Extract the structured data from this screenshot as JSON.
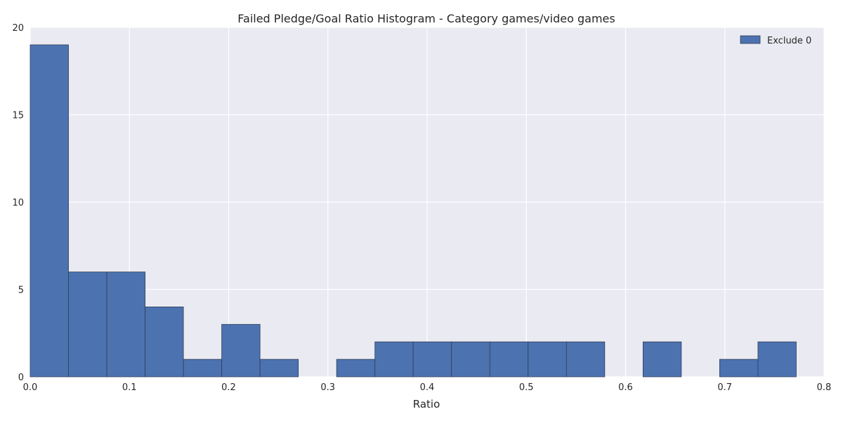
{
  "chart_data": {
    "type": "bar",
    "title": "Failed Pledge/Goal Ratio Histogram - Category games/video games",
    "xlabel": "Ratio",
    "ylabel": "",
    "xlim": [
      0,
      0.8
    ],
    "ylim": [
      0,
      20
    ],
    "xticks": [
      "0.0",
      "0.1",
      "0.2",
      "0.3",
      "0.4",
      "0.5",
      "0.6",
      "0.7",
      "0.8"
    ],
    "yticks": [
      "0",
      "5",
      "10",
      "15",
      "20"
    ],
    "grid": true,
    "legend_position": "top-right",
    "bin_edges": [
      0.0,
      0.0386,
      0.0772,
      0.1158,
      0.1544,
      0.193,
      0.2316,
      0.2702,
      0.3088,
      0.3474,
      0.386,
      0.4246,
      0.4632,
      0.5018,
      0.5404,
      0.579,
      0.6176,
      0.6562,
      0.6948,
      0.7334,
      0.772
    ],
    "series": [
      {
        "name": "Exclude 0",
        "color": "#4c72b0",
        "values": [
          19,
          6,
          6,
          4,
          1,
          3,
          1,
          0,
          1,
          2,
          2,
          2,
          2,
          2,
          2,
          0,
          2,
          0,
          1,
          2
        ]
      }
    ]
  }
}
